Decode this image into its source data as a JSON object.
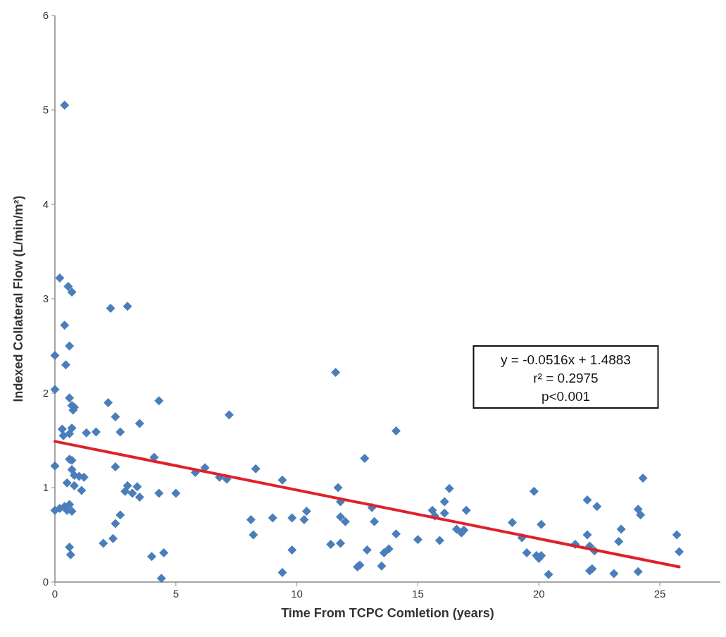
{
  "chart_data": {
    "type": "scatter",
    "xlabel": "Time From TCPC Comletion (years)",
    "ylabel": "Indexed Collateral Flow (L/min/m²)",
    "xlim": [
      0,
      27.5
    ],
    "xticks": [
      0,
      5,
      10,
      15,
      20,
      25
    ],
    "ylim": [
      0,
      6
    ],
    "yticks": [
      0,
      1,
      2,
      3,
      4,
      5,
      6
    ],
    "grid": false,
    "annotations": [
      "y = -0.0516x + 1.4883",
      "r² = 0.2975",
      "p<0.001"
    ],
    "series": [
      {
        "color": "#4a7ebb",
        "marker": "diamond",
        "x": [
          0.4,
          0.2,
          0.55,
          0.7,
          2.3,
          3.0,
          0.4,
          0.6,
          0,
          0.45,
          11.6,
          0,
          0.6,
          2.2,
          4.3,
          0.7,
          0.8,
          0.75,
          7.2,
          2.5,
          3.5,
          0.3,
          0.7,
          0.6,
          1.3,
          1.7,
          0.35,
          2.7,
          14.1,
          4.1,
          12.8,
          0.6,
          0.7,
          0,
          2.5,
          6.2,
          8.3,
          5.8,
          0.7,
          0.8,
          1.0,
          1.2,
          6.8,
          7.1,
          24.3,
          0.5,
          3.0,
          3.4,
          0.8,
          11.7,
          9.4,
          16.3,
          1.1,
          2.9,
          3.2,
          5.0,
          4.3,
          19.8,
          0.4,
          0.6,
          0.2,
          0.5,
          0.0,
          0.7,
          3.5,
          11.8,
          22.0,
          22.4,
          10.4,
          13.1,
          15.6,
          17.0,
          24.1,
          24.2,
          16.1,
          9.8,
          10.3,
          13.2,
          11.8,
          12.0,
          2.7,
          2.5,
          8.1,
          9.0,
          16.1,
          15.7,
          16.6,
          16.9,
          16.8,
          18.9,
          20.1,
          14.1,
          8.2,
          15.0,
          15.9,
          11.4,
          11.8,
          2.0,
          2.4,
          19.3,
          21.5,
          22.0,
          23.4,
          23.3,
          25.7,
          0.6,
          0.65,
          4.0,
          4.5,
          9.8,
          12.9,
          13.6,
          13.8,
          19.5,
          19.9,
          20.0,
          20.1,
          22.1,
          22.3,
          25.8,
          12.5,
          12.6,
          13.5,
          9.4,
          22.1,
          22.2,
          23.1,
          24.1,
          20.4,
          4.4
        ],
        "values": [
          5.05,
          3.22,
          3.13,
          3.07,
          2.9,
          2.92,
          2.72,
          2.5,
          2.4,
          2.3,
          2.22,
          2.04,
          1.95,
          1.9,
          1.92,
          1.87,
          1.85,
          1.82,
          1.77,
          1.75,
          1.68,
          1.62,
          1.63,
          1.57,
          1.58,
          1.59,
          1.55,
          1.59,
          1.6,
          1.32,
          1.31,
          1.3,
          1.29,
          1.23,
          1.22,
          1.21,
          1.2,
          1.16,
          1.19,
          1.13,
          1.12,
          1.11,
          1.11,
          1.09,
          1.1,
          1.05,
          1.02,
          1.01,
          1.02,
          1.0,
          1.08,
          0.99,
          0.97,
          0.96,
          0.94,
          0.94,
          0.94,
          0.96,
          0.8,
          0.82,
          0.78,
          0.76,
          0.76,
          0.75,
          0.9,
          0.85,
          0.87,
          0.8,
          0.75,
          0.79,
          0.76,
          0.76,
          0.77,
          0.71,
          0.85,
          0.68,
          0.66,
          0.64,
          0.69,
          0.64,
          0.71,
          0.62,
          0.66,
          0.68,
          0.73,
          0.7,
          0.56,
          0.55,
          0.52,
          0.63,
          0.61,
          0.51,
          0.5,
          0.45,
          0.44,
          0.4,
          0.41,
          0.41,
          0.46,
          0.47,
          0.4,
          0.5,
          0.56,
          0.43,
          0.5,
          0.37,
          0.29,
          0.27,
          0.31,
          0.34,
          0.34,
          0.31,
          0.35,
          0.31,
          0.28,
          0.25,
          0.28,
          0.38,
          0.33,
          0.32,
          0.16,
          0.18,
          0.17,
          0.1,
          0.12,
          0.14,
          0.09,
          0.11,
          0.08,
          0.04
        ]
      },
      {
        "type": "line",
        "color": "#e0202a",
        "x": [
          0,
          25.8
        ],
        "values": [
          1.49,
          0.16
        ]
      }
    ]
  }
}
